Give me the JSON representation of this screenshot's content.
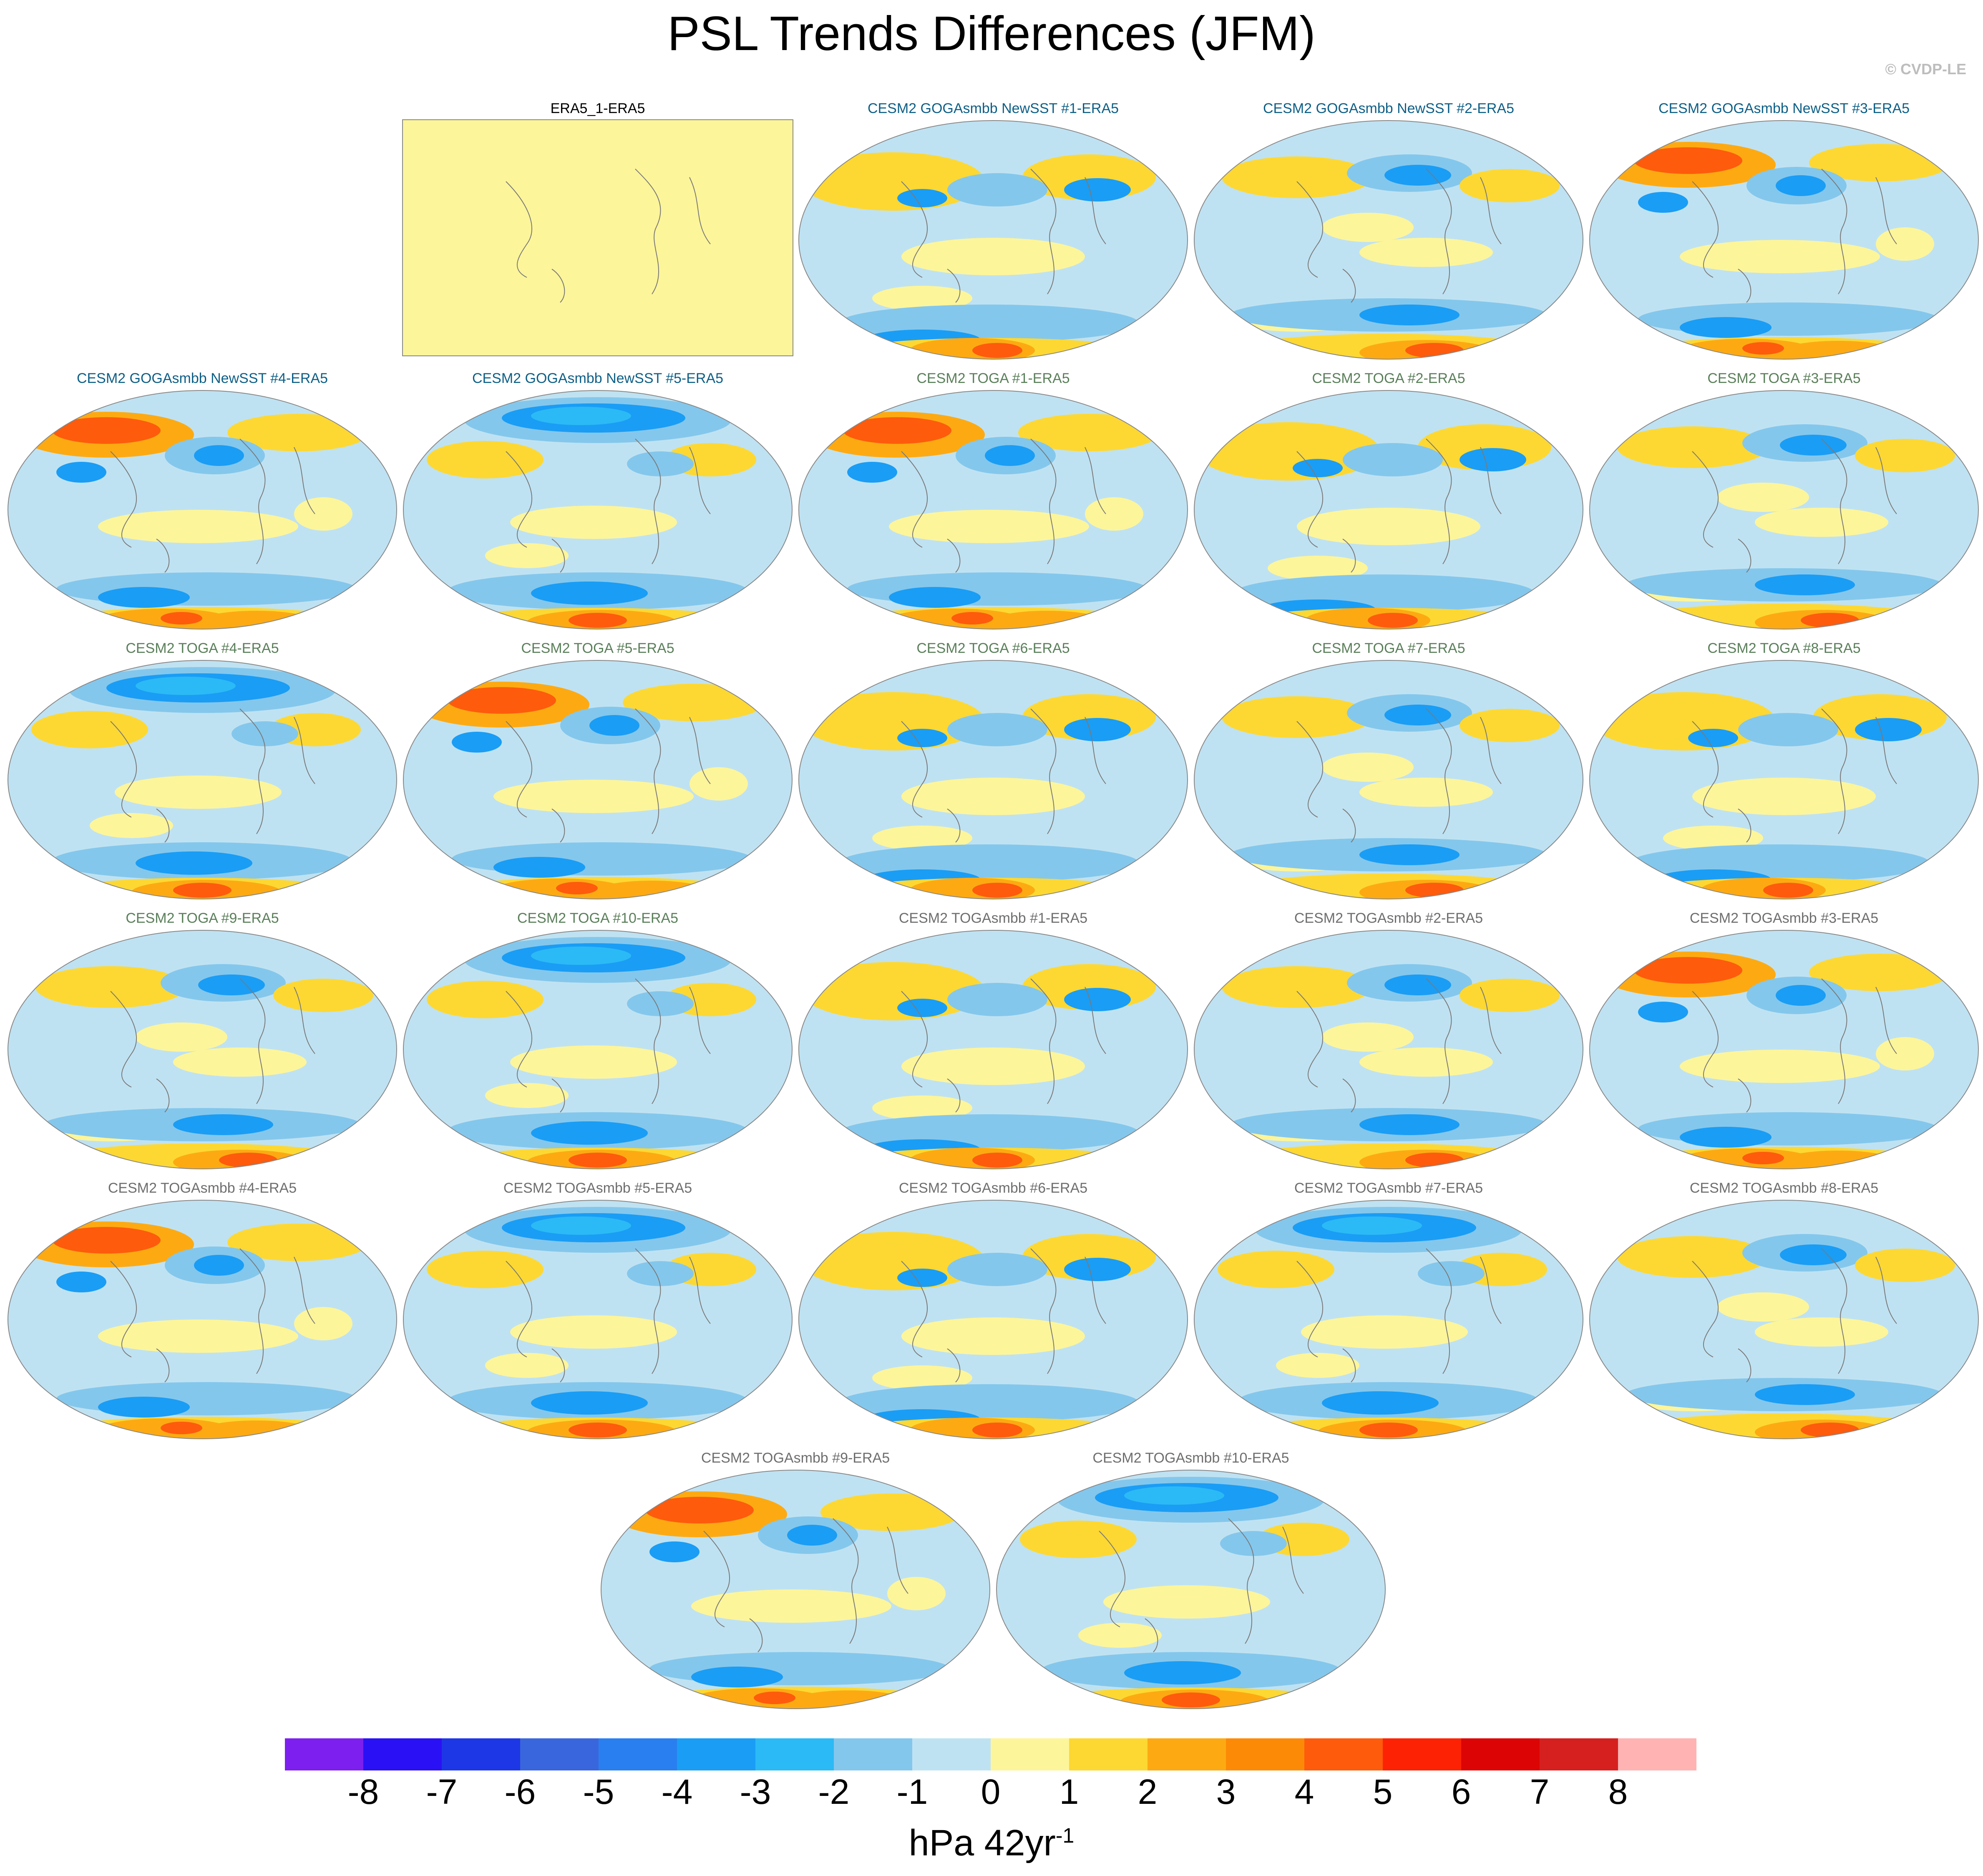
{
  "title": "PSL Trends Differences (JFM)",
  "credit": "© CVDP-LE",
  "units": {
    "base": "hPa 42yr",
    "exponent": "-1"
  },
  "colorbar": {
    "ticks": [
      "-8",
      "-7",
      "-6",
      "-5",
      "-4",
      "-3",
      "-2",
      "-1",
      "0",
      "1",
      "2",
      "3",
      "4",
      "5",
      "6",
      "7",
      "8"
    ],
    "colors": [
      "#7d1fef",
      "#2a11f5",
      "#1e37e6",
      "#3a66dd",
      "#2a7ff0",
      "#1a9df5",
      "#2bbaf5",
      "#84c7ec",
      "#bfe2f2",
      "#fdf59a",
      "#fdd832",
      "#fdaa12",
      "#fd8a06",
      "#fe5b0c",
      "#fe2205",
      "#dc0404",
      "#d62020",
      "#ffb3b3"
    ]
  },
  "panels": [
    {
      "label": "ERA5_1-ERA5",
      "group": "obs",
      "pattern": "flat"
    },
    {
      "label": "CESM2 GOGAsmbb NewSST #1-ERA5",
      "group": "goga",
      "pattern": "A"
    },
    {
      "label": "CESM2 GOGAsmbb NewSST #2-ERA5",
      "group": "goga",
      "pattern": "B"
    },
    {
      "label": "CESM2 GOGAsmbb NewSST #3-ERA5",
      "group": "goga",
      "pattern": "C"
    },
    {
      "label": "CESM2 GOGAsmbb NewSST #4-ERA5",
      "group": "goga",
      "pattern": "C"
    },
    {
      "label": "CESM2 GOGAsmbb NewSST #5-ERA5",
      "group": "goga",
      "pattern": "D"
    },
    {
      "label": "CESM2 TOGA #1-ERA5",
      "group": "toga",
      "pattern": "C"
    },
    {
      "label": "CESM2 TOGA #2-ERA5",
      "group": "toga",
      "pattern": "A"
    },
    {
      "label": "CESM2 TOGA #3-ERA5",
      "group": "toga",
      "pattern": "B"
    },
    {
      "label": "CESM2 TOGA #4-ERA5",
      "group": "toga",
      "pattern": "D"
    },
    {
      "label": "CESM2 TOGA #5-ERA5",
      "group": "toga",
      "pattern": "C"
    },
    {
      "label": "CESM2 TOGA #6-ERA5",
      "group": "toga",
      "pattern": "A"
    },
    {
      "label": "CESM2 TOGA #7-ERA5",
      "group": "toga",
      "pattern": "B"
    },
    {
      "label": "CESM2 TOGA #8-ERA5",
      "group": "toga",
      "pattern": "A"
    },
    {
      "label": "CESM2 TOGA #9-ERA5",
      "group": "toga",
      "pattern": "B"
    },
    {
      "label": "CESM2 TOGA #10-ERA5",
      "group": "toga",
      "pattern": "D"
    },
    {
      "label": "CESM2 TOGAsmbb #1-ERA5",
      "group": "togasmbb",
      "pattern": "A"
    },
    {
      "label": "CESM2 TOGAsmbb #2-ERA5",
      "group": "togasmbb",
      "pattern": "B"
    },
    {
      "label": "CESM2 TOGAsmbb #3-ERA5",
      "group": "togasmbb",
      "pattern": "C"
    },
    {
      "label": "CESM2 TOGAsmbb #4-ERA5",
      "group": "togasmbb",
      "pattern": "C"
    },
    {
      "label": "CESM2 TOGAsmbb #5-ERA5",
      "group": "togasmbb",
      "pattern": "D"
    },
    {
      "label": "CESM2 TOGAsmbb #6-ERA5",
      "group": "togasmbb",
      "pattern": "A"
    },
    {
      "label": "CESM2 TOGAsmbb #7-ERA5",
      "group": "togasmbb",
      "pattern": "D"
    },
    {
      "label": "CESM2 TOGAsmbb #8-ERA5",
      "group": "togasmbb",
      "pattern": "B"
    },
    {
      "label": "CESM2 TOGAsmbb #9-ERA5",
      "group": "togasmbb",
      "pattern": "C"
    },
    {
      "label": "CESM2 TOGAsmbb #10-ERA5",
      "group": "togasmbb",
      "pattern": "D"
    }
  ]
}
